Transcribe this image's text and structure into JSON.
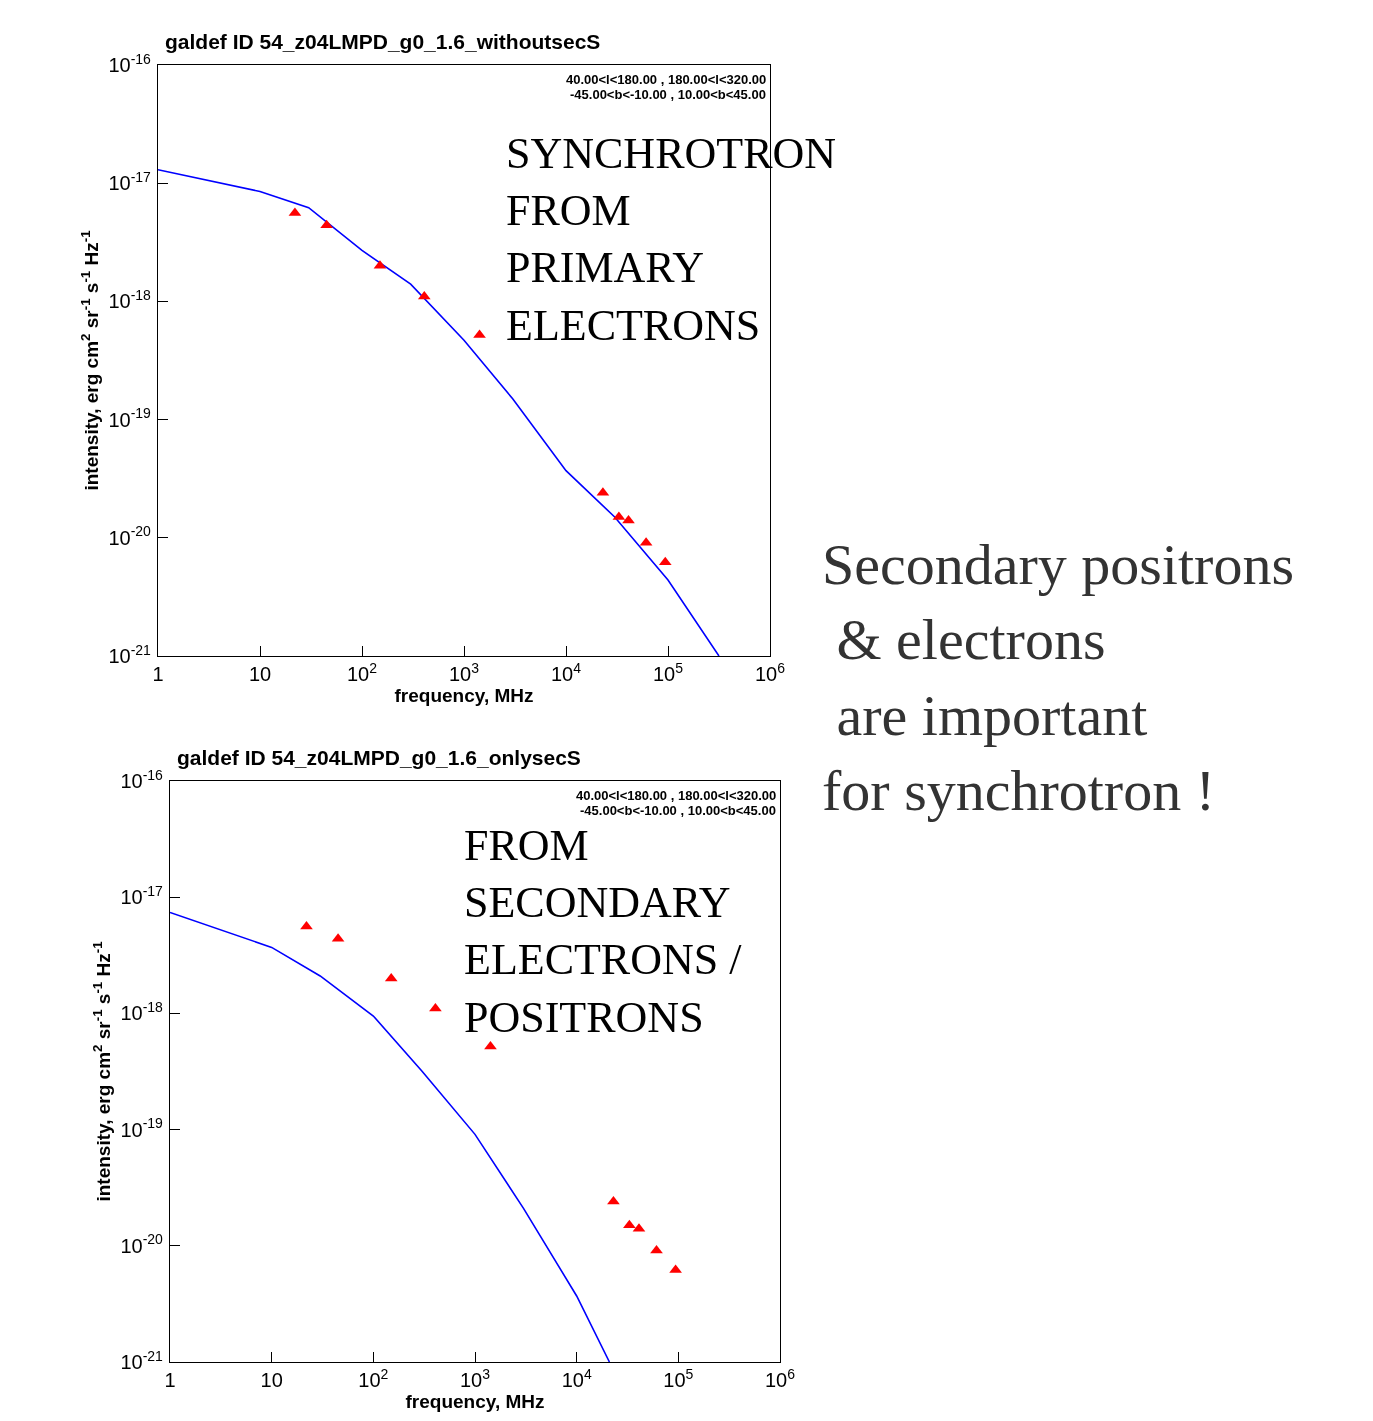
{
  "chart_data": [
    {
      "type": "scatter",
      "title": "galdef ID 54_z04LMPD_g0_1.6_withoutsecS",
      "xlabel": "frequency, MHz",
      "ylabel": "intensity, erg cm$^{2}$ sr$^{-1}$ s$^{-1}$ Hz$^{-1}$",
      "log": "xy",
      "xlim": [
        1,
        1000000
      ],
      "ylim": [
        1e-21,
        1e-16
      ],
      "xticks": [
        1,
        10,
        {
          "value": 100,
          "label": "10$^{2}$"
        },
        {
          "value": 1000,
          "label": "10$^{3}$"
        },
        {
          "value": 10000,
          "label": "10$^{4}$"
        },
        {
          "value": 100000,
          "label": "10$^{5}$"
        },
        {
          "value": 1000000,
          "label": "10$^{6}$"
        }
      ],
      "yticks": [
        {
          "value": 1e-21,
          "label": "10$^{-21}$"
        },
        {
          "value": 1e-20,
          "label": "10$^{-20}$"
        },
        {
          "value": 1e-19,
          "label": "10$^{-19}$"
        },
        {
          "value": 1e-18,
          "label": "10$^{-18}$"
        },
        {
          "value": 1e-17,
          "label": "10$^{-17}$"
        },
        {
          "value": 1e-16,
          "label": "10$^{-16}$"
        }
      ],
      "annotations": [
        "40.00<l<180.00 , 180.00<l<320.00",
        "-45.00<b<-10.00 , 10.00<b<45.00",
        "SYNCHROTRON\nFROM\nPRIMARY\nELECTRONS"
      ],
      "series": [
        {
          "type": "line",
          "color": "#0000ff",
          "line_style": "solid",
          "marker": "none",
          "x": [
            1,
            10,
            30,
            100,
            300,
            1000,
            3000,
            10000,
            30000,
            100000,
            316000
          ],
          "values": [
            1.3e-17,
            8.5e-18,
            6.2e-18,
            2.7e-18,
            1.4e-18,
            4.7e-19,
            1.5e-19,
            3.7e-20,
            1.5e-20,
            4.4e-21,
            1e-21
          ]
        },
        {
          "type": "scatter",
          "color": "#ff0000",
          "marker": "triangle",
          "x": [
            22,
            45,
            150,
            408,
            1420,
            23000,
            33000,
            41000,
            61000,
            94000
          ],
          "values": [
            5.6e-18,
            4.4e-18,
            2e-18,
            1.1e-18,
            5.2e-19,
            2.4e-20,
            1.5e-20,
            1.4e-20,
            9.1e-21,
            6.2e-21
          ]
        }
      ]
    },
    {
      "type": "scatter",
      "title": "galdef ID 54_z04LMPD_g0_1.6_onlysecS",
      "xlabel": "frequency, MHz",
      "ylabel": "intensity, erg cm$^{2}$ sr$^{-1}$ s$^{-1}$ Hz$^{-1}$",
      "log": "xy",
      "xlim": [
        1,
        1000000
      ],
      "ylim": [
        1e-21,
        1e-16
      ],
      "xticks": [
        1,
        10,
        {
          "value": 100,
          "label": "10$^{2}$"
        },
        {
          "value": 1000,
          "label": "10$^{3}$"
        },
        {
          "value": 10000,
          "label": "10$^{4}$"
        },
        {
          "value": 100000,
          "label": "10$^{5}$"
        },
        {
          "value": 1000000,
          "label": "10$^{6}$"
        }
      ],
      "yticks": [
        {
          "value": 1e-21,
          "label": "10$^{-21}$"
        },
        {
          "value": 1e-20,
          "label": "10$^{-20}$"
        },
        {
          "value": 1e-19,
          "label": "10$^{-19}$"
        },
        {
          "value": 1e-18,
          "label": "10$^{-18}$"
        },
        {
          "value": 1e-17,
          "label": "10$^{-17}$"
        },
        {
          "value": 1e-16,
          "label": "10$^{-16}$"
        }
      ],
      "annotations": [
        "40.00<l<180.00 , 180.00<l<320.00",
        "-45.00<b<-10.00 , 10.00<b<45.00",
        "FROM\nSECONDARY\nELECTRONS /\nPOSITRONS"
      ],
      "series": [
        {
          "type": "line",
          "color": "#0000ff",
          "line_style": "solid",
          "marker": "none",
          "x": [
            1,
            10,
            30,
            100,
            300,
            1000,
            3000,
            10000,
            21000
          ],
          "values": [
            7.4e-18,
            3.7e-18,
            2.1e-18,
            9.5e-19,
            3.2e-19,
            9.1e-20,
            2.1e-20,
            3.7e-21,
            1e-21
          ]
        },
        {
          "type": "scatter",
          "color": "#ff0000",
          "marker": "triangle",
          "x": [
            22,
            45,
            150,
            408,
            1420,
            23000,
            33000,
            41000,
            61000,
            94000
          ],
          "values": [
            5.6e-18,
            4.4e-18,
            2e-18,
            1.1e-18,
            5.2e-19,
            2.4e-20,
            1.5e-20,
            1.4e-20,
            9.1e-21,
            6.2e-21
          ]
        }
      ]
    },
    {
      "type": "other",
      "annotations": [
        "Secondary positrons\n & electrons\n are important\nfor synchrotron !"
      ]
    }
  ]
}
